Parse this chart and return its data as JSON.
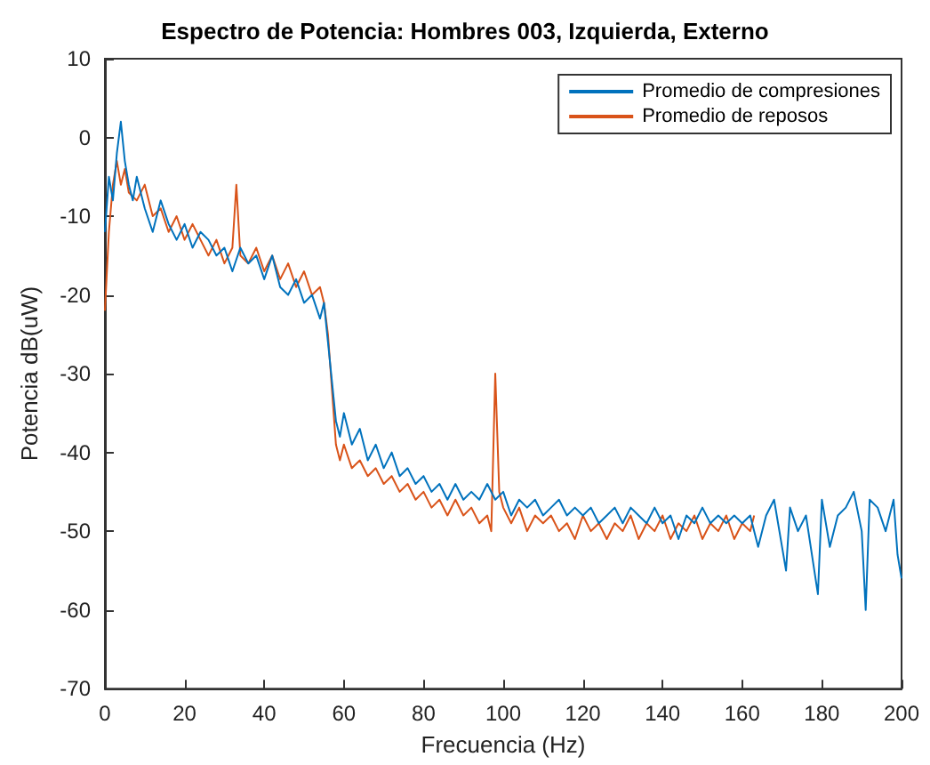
{
  "chart_data": {
    "type": "line",
    "title": "Espectro de Potencia: Hombres 003, Izquierda, Externo",
    "xlabel": "Frecuencia (Hz)",
    "ylabel": "Potencia dB(uW)",
    "xlim": [
      0,
      200
    ],
    "xticks": [
      0,
      20,
      40,
      60,
      80,
      100,
      120,
      140,
      160,
      180,
      200
    ],
    "ylim": [
      -70,
      10
    ],
    "yticks": [
      -70,
      -60,
      -50,
      -40,
      -30,
      -20,
      -10,
      0,
      10
    ],
    "grid": false,
    "legend": "top right",
    "marker": "none",
    "line_style": "solid",
    "series": [
      {
        "name": "Promedio de compresiones",
        "color": "#0072bd",
        "x": [
          0,
          1,
          2,
          3,
          4,
          5,
          6,
          7,
          8,
          10,
          12,
          14,
          16,
          18,
          20,
          22,
          24,
          26,
          28,
          30,
          32,
          34,
          36,
          38,
          40,
          42,
          44,
          46,
          48,
          50,
          52,
          54,
          55,
          56,
          57,
          58,
          59,
          60,
          62,
          64,
          66,
          68,
          70,
          72,
          74,
          76,
          78,
          80,
          82,
          84,
          86,
          88,
          90,
          92,
          94,
          96,
          98,
          100,
          102,
          104,
          106,
          108,
          110,
          112,
          114,
          116,
          118,
          120,
          122,
          124,
          126,
          128,
          130,
          132,
          134,
          136,
          138,
          140,
          142,
          144,
          146,
          148,
          150,
          152,
          154,
          156,
          158,
          160,
          162,
          164,
          166,
          168,
          171,
          172,
          174,
          176,
          179,
          180,
          182,
          184,
          186,
          188,
          190,
          191,
          192,
          194,
          196,
          198,
          199,
          200
        ],
        "values": [
          -12,
          -5,
          -8,
          -2,
          2,
          -3,
          -6,
          -8,
          -5,
          -9,
          -12,
          -8,
          -11,
          -13,
          -11,
          -14,
          -12,
          -13,
          -15,
          -14,
          -17,
          -14,
          -16,
          -15,
          -18,
          -15,
          -19,
          -20,
          -18,
          -21,
          -20,
          -23,
          -21,
          -26,
          -31,
          -36,
          -38,
          -35,
          -39,
          -37,
          -41,
          -39,
          -42,
          -40,
          -43,
          -42,
          -44,
          -43,
          -45,
          -44,
          -46,
          -44,
          -46,
          -45,
          -46,
          -44,
          -46,
          -45,
          -48,
          -46,
          -47,
          -46,
          -48,
          -47,
          -46,
          -48,
          -47,
          -48,
          -47,
          -49,
          -48,
          -47,
          -49,
          -47,
          -48,
          -49,
          -47,
          -49,
          -48,
          -51,
          -48,
          -49,
          -47,
          -49,
          -48,
          -49,
          -48,
          -49,
          -48,
          -52,
          -48,
          -46,
          -55,
          -47,
          -50,
          -48,
          -58,
          -46,
          -52,
          -48,
          -47,
          -45,
          -50,
          -60,
          -46,
          -47,
          -50,
          -46,
          -53,
          -56
        ]
      },
      {
        "name": "Promedio de reposos",
        "color": "#d95319",
        "x": [
          0,
          1,
          2,
          3,
          4,
          5,
          6,
          8,
          10,
          12,
          14,
          16,
          18,
          20,
          22,
          24,
          26,
          28,
          30,
          32,
          33,
          34,
          36,
          38,
          40,
          42,
          44,
          46,
          48,
          50,
          52,
          54,
          55,
          56,
          57,
          58,
          59,
          60,
          62,
          64,
          66,
          68,
          70,
          72,
          74,
          76,
          78,
          80,
          82,
          84,
          86,
          88,
          90,
          92,
          94,
          96,
          97,
          98,
          99,
          100,
          102,
          104,
          106,
          108,
          110,
          112,
          114,
          116,
          118,
          120,
          122,
          124,
          126,
          128,
          130,
          132,
          134,
          136,
          138,
          140,
          142,
          144,
          146,
          148,
          150,
          152,
          154,
          156,
          158,
          160,
          162,
          163
        ],
        "values": [
          -22,
          -12,
          -6,
          -3,
          -6,
          -4,
          -7,
          -8,
          -6,
          -10,
          -9,
          -12,
          -10,
          -13,
          -11,
          -13,
          -15,
          -13,
          -16,
          -14,
          -6,
          -15,
          -16,
          -14,
          -17,
          -15,
          -18,
          -16,
          -19,
          -17,
          -20,
          -19,
          -21,
          -25,
          -32,
          -39,
          -41,
          -39,
          -42,
          -41,
          -43,
          -42,
          -44,
          -43,
          -45,
          -44,
          -46,
          -45,
          -47,
          -46,
          -48,
          -46,
          -48,
          -47,
          -49,
          -48,
          -50,
          -30,
          -45,
          -47,
          -49,
          -47,
          -50,
          -48,
          -49,
          -48,
          -50,
          -49,
          -51,
          -48,
          -50,
          -49,
          -51,
          -49,
          -50,
          -48,
          -51,
          -49,
          -50,
          -48,
          -51,
          -49,
          -50,
          -48,
          -51,
          -49,
          -50,
          -48,
          -51,
          -49,
          -50,
          -48
        ]
      }
    ]
  }
}
